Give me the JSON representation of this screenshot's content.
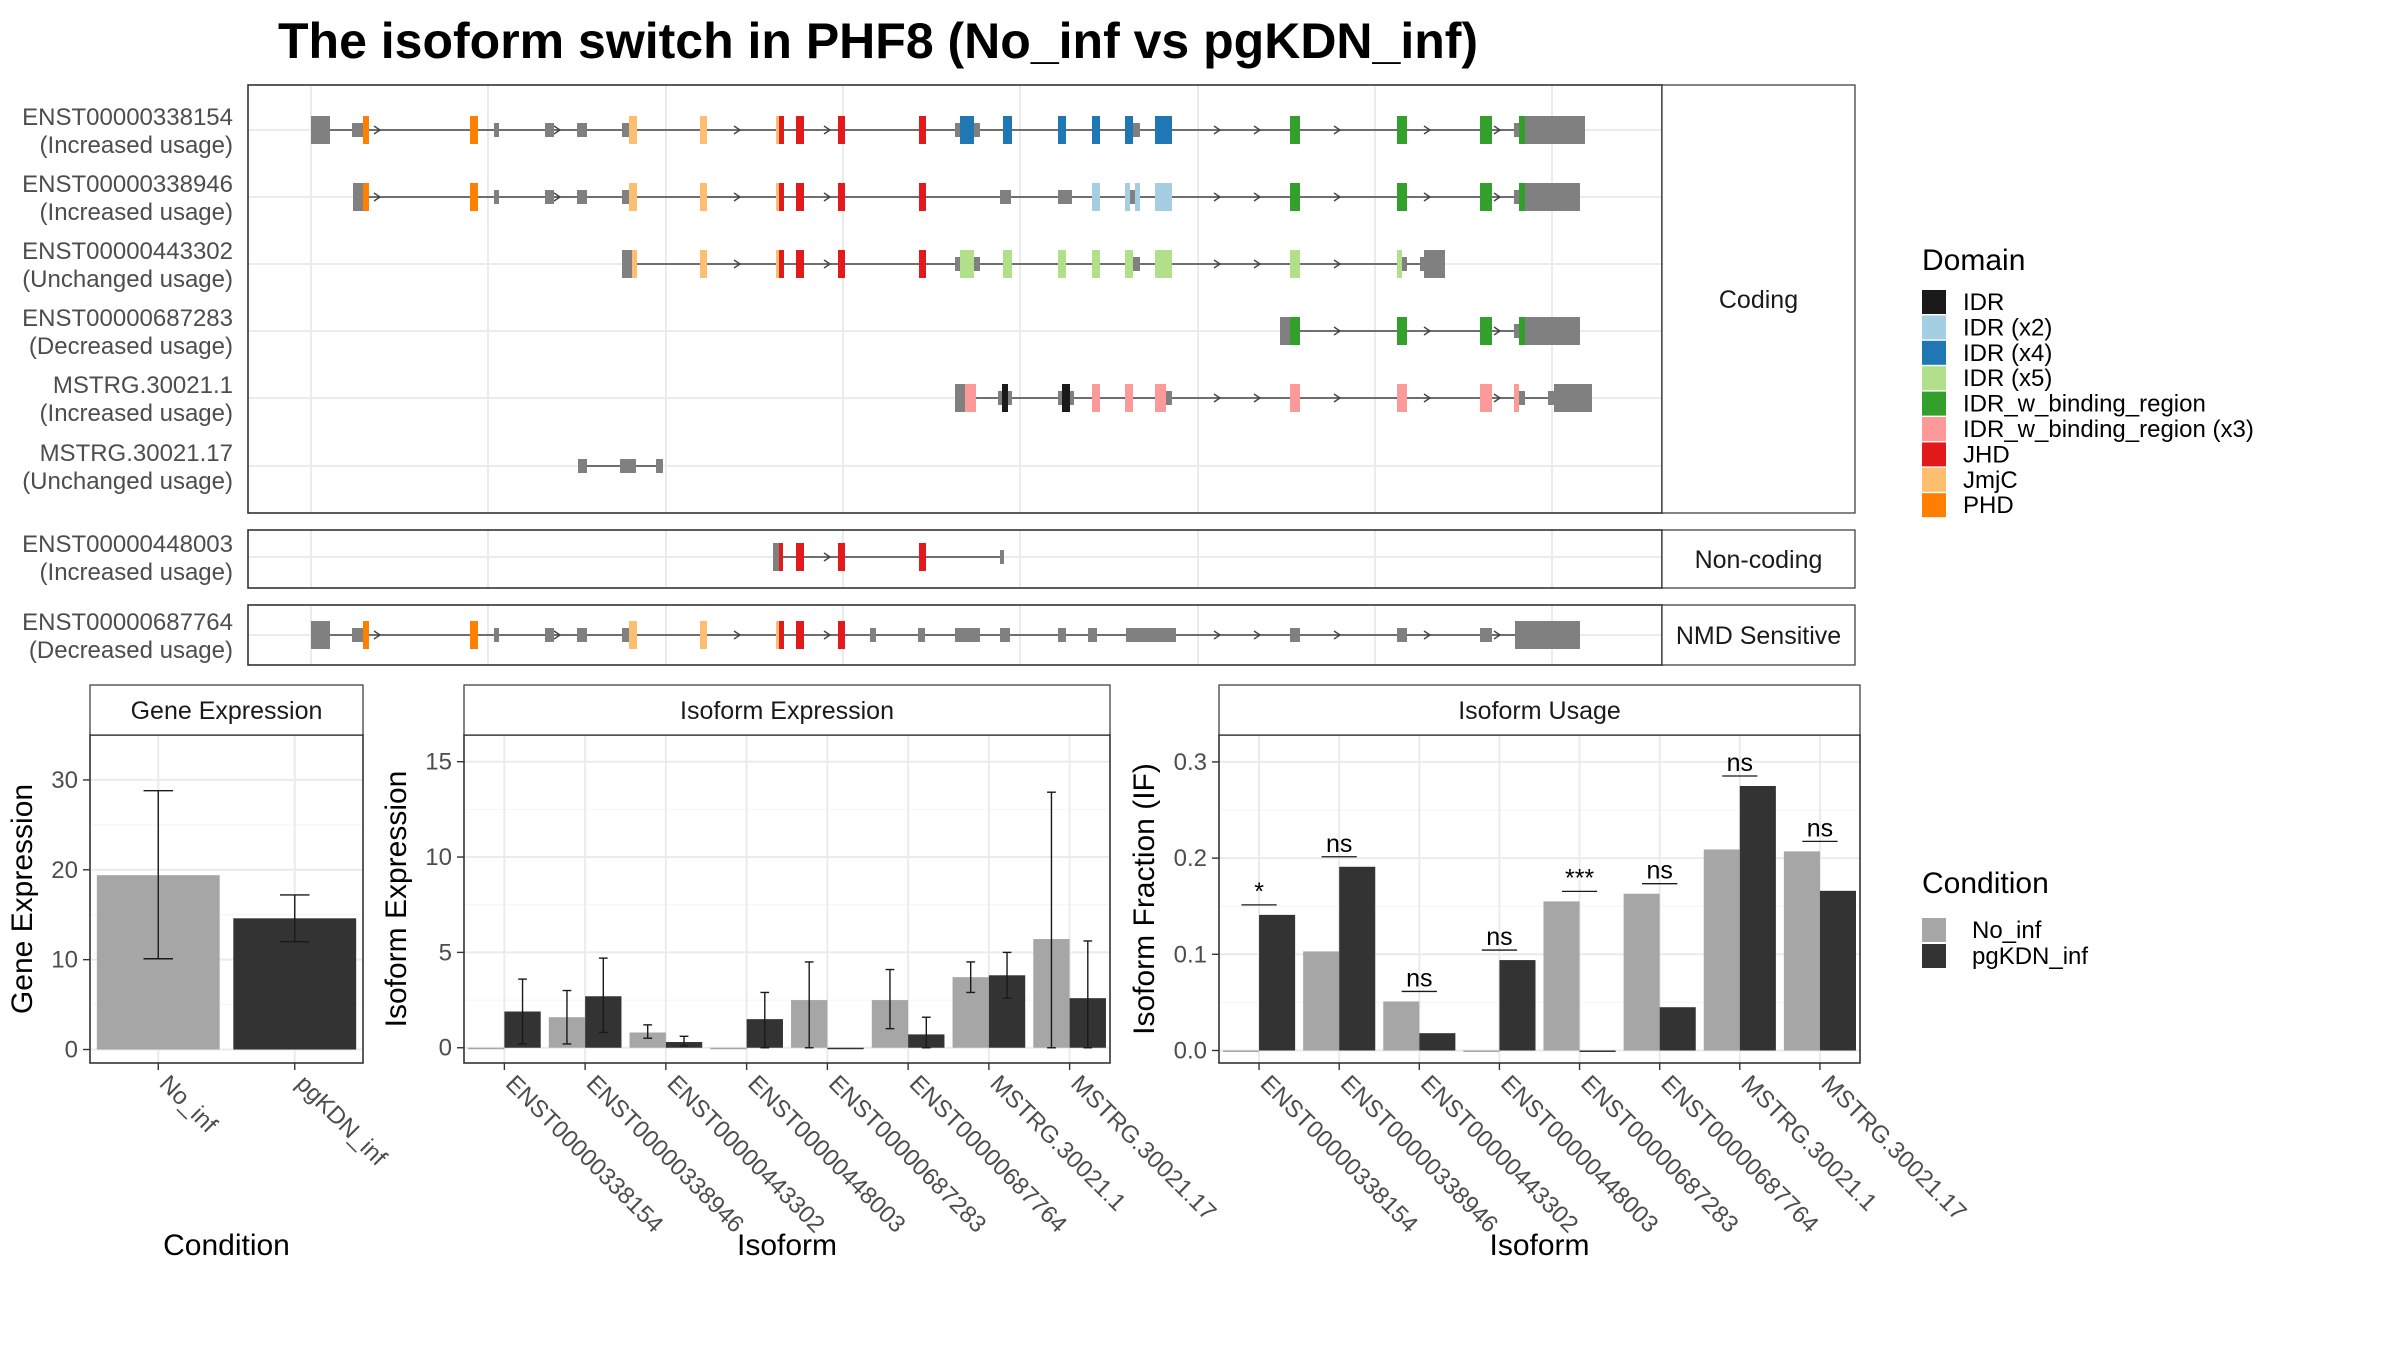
{
  "title": "The isoform switch in PHF8 (No_inf vs pgKDN_inf)",
  "colors": {
    "IDR": "#1a1a1a",
    "IDR (x2)": "#a6cee3",
    "IDR (x4)": "#1f78b4",
    "IDR (x5)": "#b2df8a",
    "IDR_w_binding_region": "#33a02c",
    "IDR_w_binding_region (x3)": "#fb9a99",
    "JHD": "#e31a1c",
    "JmjC": "#fdbf6f",
    "PHD": "#ff7f00",
    "none": "#808080",
    "No_inf": "#a6a6a6",
    "pgKDN_inf": "#333333"
  },
  "structure": {
    "panels": [
      {
        "label": "Coding",
        "isoforms": [
          {
            "id": "ENST00000338154",
            "usage": "(Increased usage)"
          },
          {
            "id": "ENST00000338946",
            "usage": "(Increased usage)"
          },
          {
            "id": "ENST00000443302",
            "usage": "(Unchanged usage)"
          },
          {
            "id": "ENST00000687283",
            "usage": "(Decreased usage)"
          },
          {
            "id": "MSTRG.30021.1",
            "usage": "(Increased usage)"
          },
          {
            "id": "MSTRG.30021.17",
            "usage": "(Unchanged usage)"
          }
        ]
      },
      {
        "label": "Non-coding",
        "isoforms": [
          {
            "id": "ENST00000448003",
            "usage": "(Increased usage)"
          }
        ]
      },
      {
        "label": "NMD Sensitive",
        "isoforms": [
          {
            "id": "ENST00000687764",
            "usage": "(Decreased usage)"
          }
        ]
      }
    ],
    "domain_legend": {
      "title": "Domain",
      "items": [
        "IDR",
        "IDR (x2)",
        "IDR (x4)",
        "IDR (x5)",
        "IDR_w_binding_region",
        "IDR_w_binding_region (x3)",
        "JHD",
        "JmjC",
        "PHD"
      ]
    }
  },
  "chart_data": [
    {
      "type": "bar",
      "title": "Gene Expression",
      "xlabel": "Condition",
      "ylabel": "Gene Expression",
      "categories": [
        "No_inf",
        "pgKDN_inf"
      ],
      "values": [
        19.4,
        14.6
      ],
      "errors": [
        [
          10.1,
          28.8
        ],
        [
          12.0,
          17.2
        ]
      ],
      "ylim": [
        -1.5,
        35
      ],
      "yticks": [
        0,
        10,
        20,
        30
      ]
    },
    {
      "type": "bar",
      "title": "Isoform Expression",
      "xlabel": "Isoform",
      "ylabel": "Isoform Expression",
      "categories": [
        "ENST00000338154",
        "ENST00000338946",
        "ENST00000443302",
        "ENST00000448003",
        "ENST00000687283",
        "ENST00000687764",
        "MSTRG.30021.1",
        "MSTRG.30021.17"
      ],
      "series": [
        {
          "name": "No_inf",
          "values": [
            0.0,
            1.6,
            0.8,
            0.0,
            2.5,
            2.5,
            3.7,
            5.7
          ],
          "errors": [
            [
              0,
              0
            ],
            [
              0.2,
              3.0
            ],
            [
              0.5,
              1.2
            ],
            [
              0,
              0
            ],
            [
              0,
              4.5
            ],
            [
              1.0,
              4.1
            ],
            [
              2.9,
              4.5
            ],
            [
              0,
              13.4
            ]
          ]
        },
        {
          "name": "pgKDN_inf",
          "values": [
            1.9,
            2.7,
            0.3,
            1.5,
            0.0,
            0.7,
            3.8,
            2.6
          ],
          "errors": [
            [
              0.2,
              3.6
            ],
            [
              0.8,
              4.7
            ],
            [
              0.1,
              0.6
            ],
            [
              0,
              2.9
            ],
            [
              0,
              0
            ],
            [
              0,
              1.6
            ],
            [
              2.6,
              5.0
            ],
            [
              0,
              5.6
            ]
          ]
        }
      ],
      "ylim": [
        -0.8,
        16.4
      ],
      "yticks": [
        0,
        5,
        10,
        15
      ]
    },
    {
      "type": "bar",
      "title": "Isoform Usage",
      "xlabel": "Isoform",
      "ylabel": "Isoform Fraction (IF)",
      "categories": [
        "ENST00000338154",
        "ENST00000338946",
        "ENST00000443302",
        "ENST00000448003",
        "ENST00000687283",
        "ENST00000687764",
        "MSTRG.30021.1",
        "MSTRG.30021.17"
      ],
      "series": [
        {
          "name": "No_inf",
          "values": [
            0.0,
            0.103,
            0.051,
            0.0,
            0.155,
            0.163,
            0.209,
            0.207
          ]
        },
        {
          "name": "pgKDN_inf",
          "values": [
            0.141,
            0.191,
            0.018,
            0.094,
            0.0,
            0.045,
            0.275,
            0.166
          ]
        }
      ],
      "significance": [
        "*",
        "ns",
        "ns",
        "ns",
        "***",
        "ns",
        "ns",
        "ns"
      ],
      "ylim": [
        -0.013,
        0.328
      ],
      "yticks": [
        0.0,
        0.1,
        0.2,
        0.3
      ]
    }
  ],
  "condition_legend": {
    "title": "Condition",
    "items": [
      "No_inf",
      "pgKDN_inf"
    ]
  }
}
